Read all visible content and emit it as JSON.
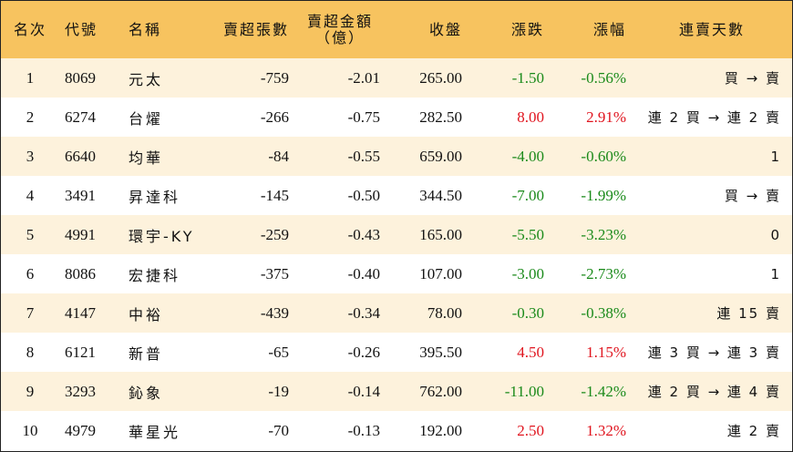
{
  "colors": {
    "header_bg": "#f7c35f",
    "stripe_bg": "#fdf2dc",
    "up": "#e0141e",
    "down": "#1a8a1a"
  },
  "headers": {
    "rank": "名次",
    "code": "代號",
    "name": "名稱",
    "net_sell_lots": "賣超張數",
    "net_sell_amount_line1": "賣超金額",
    "net_sell_amount_line2": "（億）",
    "close": "收盤",
    "change": "漲跌",
    "change_pct": "漲幅",
    "streak": "連賣天數"
  },
  "rows": [
    {
      "rank": "1",
      "code": "8069",
      "name": "元太",
      "lots": "-759",
      "amount": "-2.01",
      "close": "265.00",
      "change": "-1.50",
      "pct": "-0.56%",
      "dir": "down",
      "streak": "買 → 賣"
    },
    {
      "rank": "2",
      "code": "6274",
      "name": "台燿",
      "lots": "-266",
      "amount": "-0.75",
      "close": "282.50",
      "change": "8.00",
      "pct": "2.91%",
      "dir": "up",
      "streak": "連 2 買 → 連 2 賣"
    },
    {
      "rank": "3",
      "code": "6640",
      "name": "均華",
      "lots": "-84",
      "amount": "-0.55",
      "close": "659.00",
      "change": "-4.00",
      "pct": "-0.60%",
      "dir": "down",
      "streak": "1"
    },
    {
      "rank": "4",
      "code": "3491",
      "name": "昇達科",
      "lots": "-145",
      "amount": "-0.50",
      "close": "344.50",
      "change": "-7.00",
      "pct": "-1.99%",
      "dir": "down",
      "streak": "買 → 賣"
    },
    {
      "rank": "5",
      "code": "4991",
      "name": "環宇-KY",
      "lots": "-259",
      "amount": "-0.43",
      "close": "165.00",
      "change": "-5.50",
      "pct": "-3.23%",
      "dir": "down",
      "streak": "0"
    },
    {
      "rank": "6",
      "code": "8086",
      "name": "宏捷科",
      "lots": "-375",
      "amount": "-0.40",
      "close": "107.00",
      "change": "-3.00",
      "pct": "-2.73%",
      "dir": "down",
      "streak": "1"
    },
    {
      "rank": "7",
      "code": "4147",
      "name": "中裕",
      "lots": "-439",
      "amount": "-0.34",
      "close": "78.00",
      "change": "-0.30",
      "pct": "-0.38%",
      "dir": "down",
      "streak": "連 15 賣"
    },
    {
      "rank": "8",
      "code": "6121",
      "name": "新普",
      "lots": "-65",
      "amount": "-0.26",
      "close": "395.50",
      "change": "4.50",
      "pct": "1.15%",
      "dir": "up",
      "streak": "連 3 買 → 連 3 賣"
    },
    {
      "rank": "9",
      "code": "3293",
      "name": "鈊象",
      "lots": "-19",
      "amount": "-0.14",
      "close": "762.00",
      "change": "-11.00",
      "pct": "-1.42%",
      "dir": "down",
      "streak": "連 2 買 → 連 4 賣"
    },
    {
      "rank": "10",
      "code": "4979",
      "name": "華星光",
      "lots": "-70",
      "amount": "-0.13",
      "close": "192.00",
      "change": "2.50",
      "pct": "1.32%",
      "dir": "up",
      "streak": "連 2 賣"
    }
  ]
}
